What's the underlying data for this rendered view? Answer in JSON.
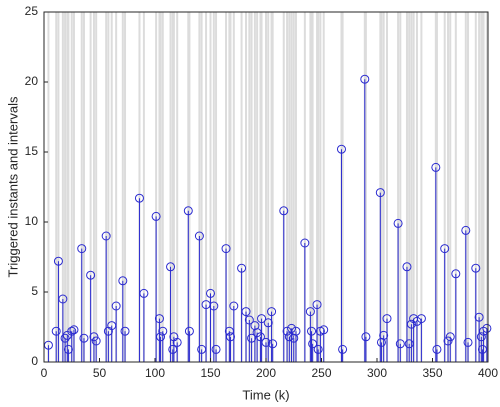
{
  "chart_data": {
    "type": "stem",
    "xlabel": "Time (k)",
    "ylabel": "Triggered instants and intervals",
    "x": [
      4,
      11,
      13,
      17,
      19,
      21,
      22,
      25,
      27,
      34,
      36,
      42,
      45,
      47,
      56,
      58,
      61,
      65,
      71,
      73,
      86,
      90,
      101,
      104,
      105,
      107,
      114,
      116,
      117,
      120,
      130,
      131,
      140,
      142,
      146,
      150,
      153,
      155,
      164,
      167,
      168,
      171,
      178,
      182,
      185,
      187,
      190,
      192,
      195,
      196,
      200,
      202,
      205,
      206,
      216,
      219,
      221,
      223,
      225,
      227,
      235,
      240,
      241,
      242,
      246,
      247,
      249,
      252,
      268,
      269,
      289,
      290,
      303,
      304,
      306,
      309,
      319,
      321,
      327,
      329,
      331,
      333,
      336,
      340,
      353,
      354,
      361,
      364,
      366,
      371,
      380,
      382,
      389,
      392,
      394,
      395,
      396,
      399
    ],
    "values": [
      1.2,
      2.2,
      7.2,
      4.5,
      1.7,
      1.9,
      0.9,
      2.2,
      2.3,
      8.1,
      1.7,
      6.2,
      1.8,
      1.5,
      9.0,
      2.2,
      2.6,
      4.0,
      5.8,
      2.2,
      11.7,
      4.9,
      10.4,
      3.1,
      1.8,
      2.2,
      6.8,
      0.9,
      1.8,
      1.4,
      10.8,
      2.2,
      9.0,
      0.9,
      4.1,
      4.9,
      4.0,
      0.9,
      8.1,
      2.2,
      1.8,
      4.0,
      6.7,
      3.6,
      3.0,
      1.7,
      2.6,
      2.1,
      1.8,
      3.1,
      1.4,
      2.8,
      3.6,
      1.3,
      10.8,
      2.2,
      1.8,
      2.4,
      1.7,
      2.2,
      8.5,
      3.6,
      2.2,
      1.3,
      4.1,
      0.9,
      2.2,
      2.3,
      15.2,
      0.9,
      20.2,
      1.8,
      12.1,
      1.4,
      1.9,
      3.1,
      9.9,
      1.3,
      6.8,
      1.3,
      2.7,
      3.1,
      2.9,
      3.1,
      13.9,
      0.9,
      8.1,
      1.5,
      1.8,
      6.3,
      9.4,
      1.4,
      6.7,
      3.2,
      1.8,
      0.9,
      2.2,
      2.4
    ],
    "color": "#2b2bd0",
    "instant_color": "#dcdcdc",
    "xlim": [
      0,
      400
    ],
    "ylim": [
      0,
      25
    ],
    "xticks": [
      0,
      50,
      100,
      150,
      200,
      250,
      300,
      350,
      400
    ],
    "yticks": [
      0,
      5,
      10,
      15,
      20,
      25
    ]
  }
}
